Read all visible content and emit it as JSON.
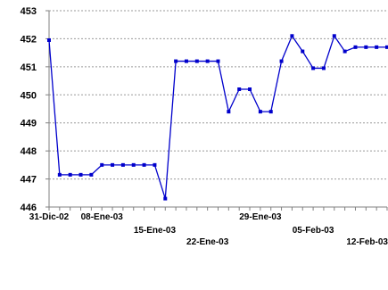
{
  "chart_data": {
    "type": "line",
    "xlabel": "",
    "ylabel": "",
    "ylim": [
      446,
      453
    ],
    "yticks": [
      "453",
      "452",
      "451",
      "450",
      "449",
      "448",
      "447",
      "446"
    ],
    "x_tick_labels": [
      "31-Dic-02",
      "08-Ene-03",
      "15-Ene-03",
      "22-Ene-03",
      "29-Ene-03",
      "05-Feb-03",
      "12-Feb-03"
    ],
    "x_tick_index": [
      0,
      5,
      10,
      15,
      20,
      25,
      30
    ],
    "grid": true,
    "series": [
      {
        "color": "#0000cc",
        "values": [
          451.95,
          447.15,
          447.15,
          447.15,
          447.15,
          447.5,
          447.5,
          447.5,
          447.5,
          447.5,
          447.5,
          446.3,
          451.2,
          451.2,
          451.2,
          451.2,
          451.2,
          449.4,
          450.2,
          450.2,
          449.4,
          449.4,
          451.2,
          452.1,
          451.55,
          450.95,
          450.95,
          452.1,
          451.55,
          451.7,
          451.7,
          451.7,
          451.7
        ]
      }
    ]
  }
}
